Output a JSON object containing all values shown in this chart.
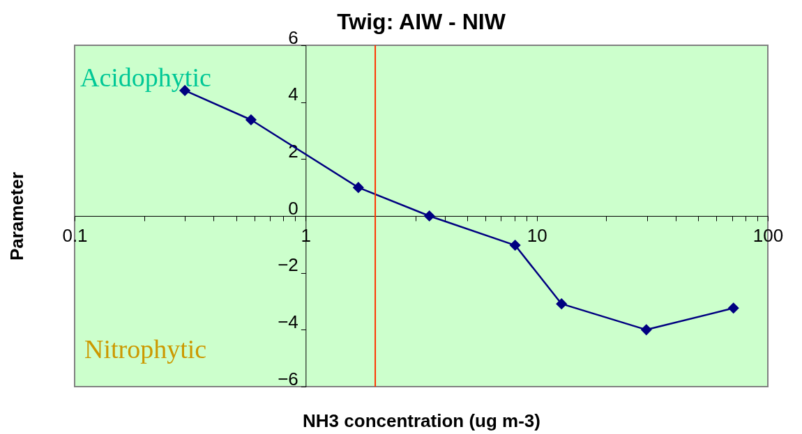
{
  "chart_data": {
    "type": "line",
    "title": "Twig: AIW - NIW",
    "xlabel": "NH3 concentration (ug m-3)",
    "ylabel": "Parameter",
    "log": "x",
    "x": [
      0.3,
      0.58,
      1.69,
      3.43,
      8.06,
      12.8,
      29.8,
      71
    ],
    "series": [
      {
        "color": "#000080",
        "values": [
          4.41,
          3.38,
          1.0,
          0.0,
          -1.03,
          -3.09,
          -4.0,
          -3.24
        ]
      }
    ],
    "xlim": [
      0.1,
      100
    ],
    "xticks": [
      0.1,
      {
        "value": 0.2,
        "label": null
      },
      {
        "value": 0.3,
        "label": null
      },
      {
        "value": 0.4,
        "label": null
      },
      {
        "value": 0.5,
        "label": null
      },
      {
        "value": 0.6,
        "label": null
      },
      {
        "value": 0.7,
        "label": null
      },
      {
        "value": 0.8,
        "label": null
      },
      {
        "value": 0.9,
        "label": null
      },
      1,
      {
        "value": 2,
        "label": null
      },
      {
        "value": 3,
        "label": null
      },
      {
        "value": 4,
        "label": null
      },
      {
        "value": 5,
        "label": null
      },
      {
        "value": 6,
        "label": null
      },
      {
        "value": 7,
        "label": null
      },
      {
        "value": 8,
        "label": null
      },
      {
        "value": 9,
        "label": null
      },
      10,
      {
        "value": 20,
        "label": null
      },
      {
        "value": 30,
        "label": null
      },
      {
        "value": 40,
        "label": null
      },
      {
        "value": 50,
        "label": null
      },
      {
        "value": 60,
        "label": null
      },
      {
        "value": 70,
        "label": null
      },
      {
        "value": 80,
        "label": null
      },
      {
        "value": 90,
        "label": null
      },
      100
    ],
    "ylim": [
      -6,
      6
    ],
    "yticks": [
      -6,
      -4,
      -2,
      0,
      2,
      4,
      6
    ],
    "ref_lines": [
      {
        "axis": "x",
        "value": 2,
        "color": "#ff3300"
      }
    ],
    "annotations": [
      "Acidophytic",
      "Nitrophytic"
    ],
    "marker": "diamond",
    "grid": false
  }
}
